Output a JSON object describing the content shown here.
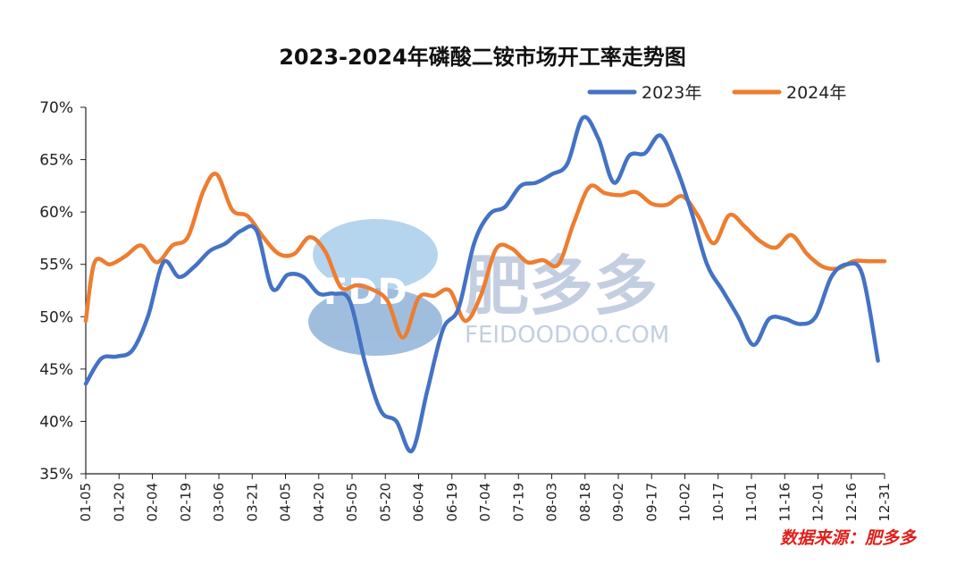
{
  "chart_data": {
    "type": "line",
    "title": "2023-2024年磷酸二铵市场开工率走势图",
    "xlabel": "",
    "ylabel": "",
    "ylim": [
      35,
      70
    ],
    "y_unit": "%",
    "yticks": [
      "35%",
      "40%",
      "45%",
      "50%",
      "55%",
      "60%",
      "65%",
      "70%"
    ],
    "categories": [
      "01-05",
      "01-20",
      "02-04",
      "02-19",
      "03-06",
      "03-21",
      "04-05",
      "04-20",
      "05-05",
      "05-20",
      "06-04",
      "06-19",
      "07-04",
      "07-19",
      "08-03",
      "08-18",
      "09-02",
      "09-17",
      "10-02",
      "10-17",
      "11-01",
      "11-16",
      "12-01",
      "12-16",
      "12-31"
    ],
    "legend_position": "top-right",
    "grid": false,
    "series": [
      {
        "name": "2023年",
        "color": "#4472c4",
        "x": [
          "01-05",
          "01-12",
          "01-19",
          "01-26",
          "02-02",
          "02-09",
          "02-16",
          "02-23",
          "03-02",
          "03-09",
          "03-16",
          "03-23",
          "03-30",
          "04-06",
          "04-13",
          "04-20",
          "04-27",
          "05-04",
          "05-11",
          "05-18",
          "05-25",
          "06-01",
          "06-08",
          "06-15",
          "06-22",
          "06-29",
          "07-06",
          "07-13",
          "07-20",
          "07-27",
          "08-03",
          "08-10",
          "08-17",
          "08-24",
          "08-31",
          "09-07",
          "09-14",
          "09-21",
          "09-28",
          "10-05",
          "10-12",
          "10-19",
          "10-26",
          "11-02",
          "11-09",
          "11-16",
          "11-23",
          "11-30",
          "12-07",
          "12-14",
          "12-21",
          "12-28"
        ],
        "values": [
          43.6,
          46.0,
          46.2,
          46.8,
          50.0,
          55.2,
          53.8,
          54.8,
          56.3,
          57.0,
          58.2,
          58.2,
          52.7,
          54.0,
          53.8,
          52.2,
          52.2,
          51.5,
          45.5,
          41.0,
          40.0,
          37.2,
          43.0,
          48.8,
          50.8,
          57.0,
          59.8,
          60.5,
          62.5,
          62.8,
          63.6,
          64.6,
          69.0,
          67.0,
          62.8,
          65.4,
          65.6,
          67.3,
          64.3,
          60.0,
          55.0,
          52.5,
          50.0,
          47.3,
          49.8,
          49.8,
          49.3,
          50.0,
          53.8,
          55.0,
          54.0,
          45.8
        ]
      },
      {
        "name": "2024年",
        "color": "#ed7d31",
        "x": [
          "01-05",
          "01-09",
          "01-16",
          "01-23",
          "01-30",
          "02-06",
          "02-13",
          "02-20",
          "02-27",
          "03-05",
          "03-12",
          "03-19",
          "03-26",
          "04-02",
          "04-09",
          "04-16",
          "04-23",
          "04-30",
          "05-07",
          "05-14",
          "05-21",
          "05-28",
          "06-04",
          "06-11",
          "06-18",
          "06-25",
          "07-02",
          "07-09",
          "07-16",
          "07-23",
          "07-30",
          "08-06",
          "08-13",
          "08-20",
          "08-27",
          "09-03",
          "09-10",
          "09-17",
          "09-24",
          "10-01",
          "10-08",
          "10-15",
          "10-22",
          "10-29",
          "11-05",
          "11-12",
          "11-19",
          "11-26",
          "12-03",
          "12-10",
          "12-17",
          "12-24",
          "12-31"
        ],
        "values": [
          49.6,
          55.2,
          55.0,
          55.8,
          56.8,
          55.2,
          56.8,
          57.6,
          62.0,
          63.6,
          60.2,
          59.6,
          57.6,
          56.0,
          56.0,
          57.6,
          56.2,
          52.8,
          53.0,
          52.6,
          51.5,
          48.0,
          51.8,
          52.0,
          52.5,
          49.6,
          52.0,
          56.5,
          56.5,
          55.2,
          55.4,
          55.0,
          59.0,
          62.4,
          61.8,
          61.6,
          61.9,
          60.8,
          60.7,
          61.5,
          59.6,
          57.0,
          59.7,
          58.6,
          57.2,
          56.6,
          57.8,
          56.0,
          54.8,
          54.6,
          55.3,
          55.3,
          55.3
        ]
      }
    ],
    "source": "数据来源：肥多多",
    "watermark": {
      "logo_text": "FDD",
      "brand_text": "肥多多",
      "url_text": "FEIDOODOO.COM"
    }
  }
}
